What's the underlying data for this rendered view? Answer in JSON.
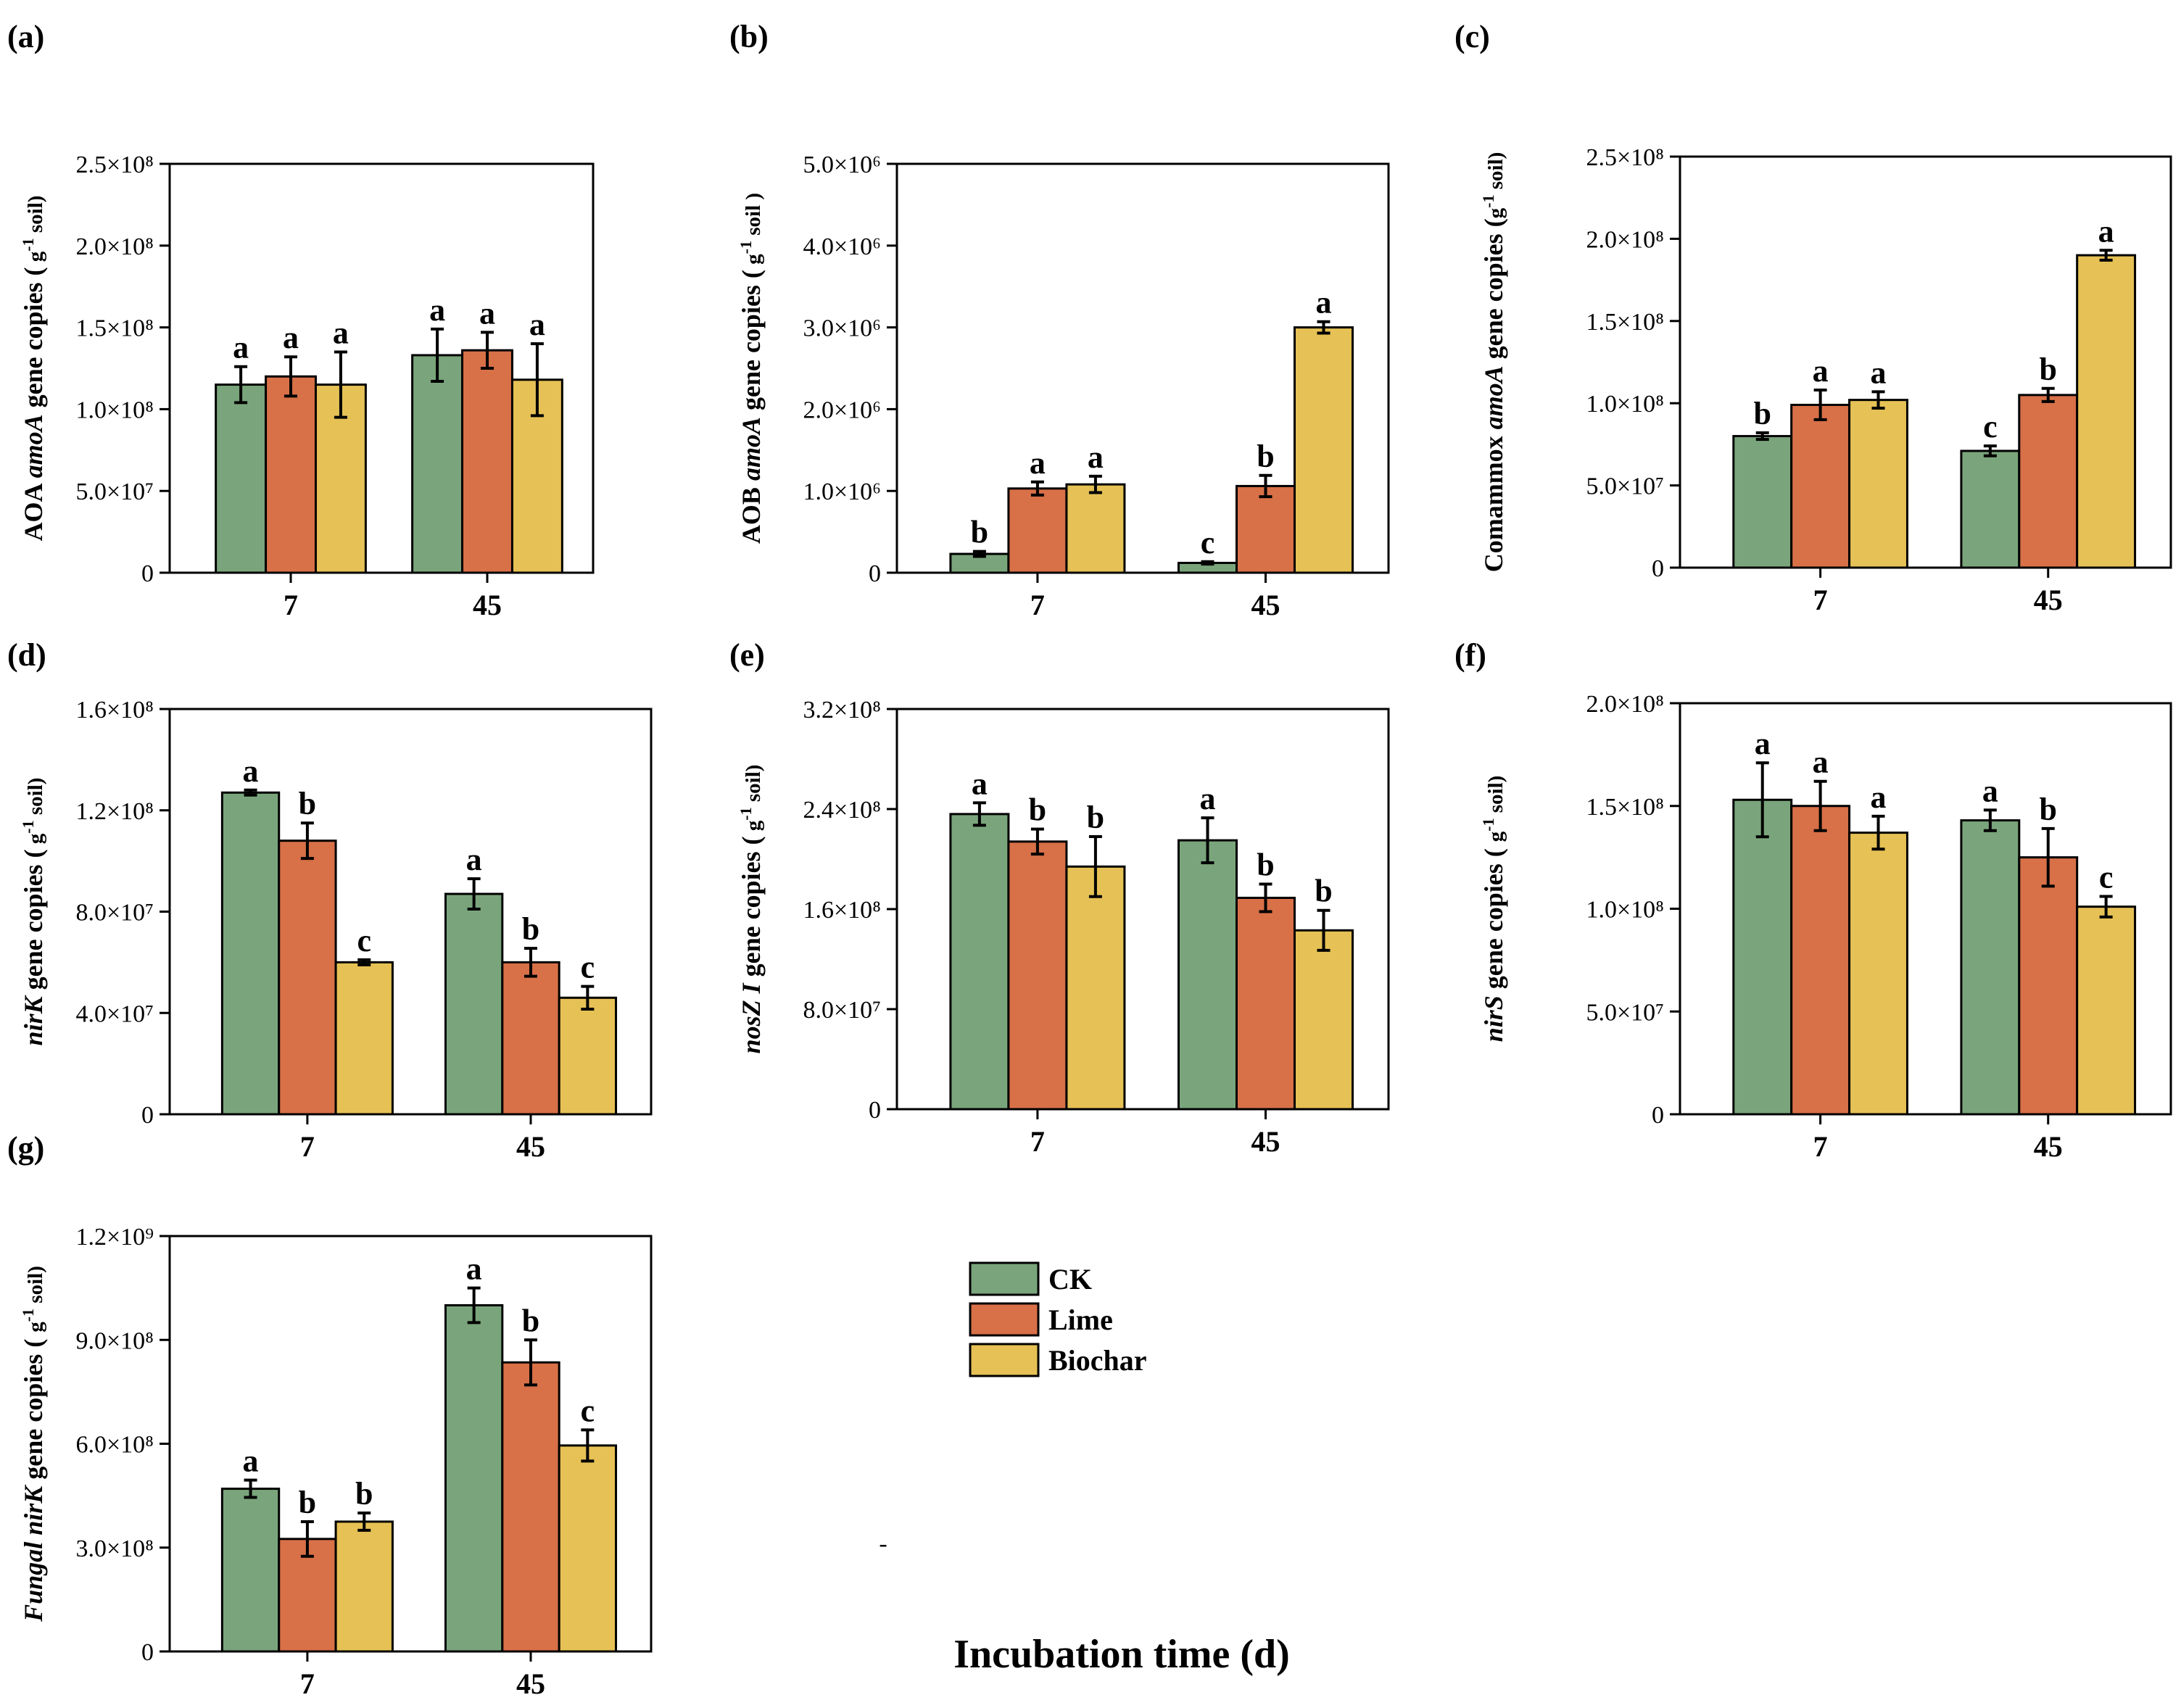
{
  "chart_data": {
    "type": "bar",
    "x_title": "Incubation time (d)",
    "categories": [
      "7",
      "45"
    ],
    "legend": {
      "position": "center",
      "entries": [
        {
          "name": "CK",
          "color": "#7aa57c"
        },
        {
          "name": "Lime",
          "color": "#d87048"
        },
        {
          "name": "Biochar",
          "color": "#e6c155"
        }
      ]
    },
    "stray_mark": "-",
    "panels": [
      {
        "label": "(a)",
        "ylabel": [
          {
            "t": "AOA "
          },
          {
            "t": "amoA",
            "i": true
          },
          {
            "t": " gene  copies ("
          },
          {
            "t": " g",
            "s": 0.8
          },
          {
            "t": "-1",
            "sup": true
          },
          {
            "t": " soil)",
            "s": 0.8
          }
        ],
        "ylim": [
          0,
          250000000
        ],
        "ticks": [
          {
            "v": 0,
            "text": "0"
          },
          {
            "v": 50000000,
            "text": "5.0×10⁷"
          },
          {
            "v": 100000000,
            "text": "1.0×10⁸"
          },
          {
            "v": 150000000,
            "text": "1.5×10⁸"
          },
          {
            "v": 200000000,
            "text": "2.0×10⁸"
          },
          {
            "v": 250000000,
            "text": "2.5×10⁸"
          }
        ],
        "series": [
          {
            "name": "CK",
            "values": [
              115000000,
              133000000
            ],
            "errors": [
              11000000,
              16000000
            ],
            "letters": [
              "a",
              "a"
            ]
          },
          {
            "name": "Lime",
            "values": [
              120000000,
              136000000
            ],
            "errors": [
              12000000,
              11000000
            ],
            "letters": [
              "a",
              "a"
            ]
          },
          {
            "name": "Biochar",
            "values": [
              115000000,
              118000000
            ],
            "errors": [
              20000000,
              22000000
            ],
            "letters": [
              "a",
              "a"
            ]
          }
        ]
      },
      {
        "label": "(b)",
        "ylabel": [
          {
            "t": "AOB "
          },
          {
            "t": "amoA",
            "i": true
          },
          {
            "t": " gene  copies ("
          },
          {
            "t": " g",
            "s": 0.8
          },
          {
            "t": "-1",
            "sup": true
          },
          {
            "t": " soil )",
            "s": 0.8
          }
        ],
        "ylim": [
          0,
          5000000
        ],
        "ticks": [
          {
            "v": 0,
            "text": "0"
          },
          {
            "v": 1000000,
            "text": "1.0×10⁶"
          },
          {
            "v": 2000000,
            "text": "2.0×10⁶"
          },
          {
            "v": 3000000,
            "text": "3.0×10⁶"
          },
          {
            "v": 4000000,
            "text": "4.0×10⁶"
          },
          {
            "v": 5000000,
            "text": "5.0×10⁶"
          }
        ],
        "series": [
          {
            "name": "CK",
            "values": [
              230000,
              120000
            ],
            "errors": [
              30000,
              15000
            ],
            "letters": [
              "b",
              "c"
            ]
          },
          {
            "name": "Lime",
            "values": [
              1030000,
              1060000
            ],
            "errors": [
              80000,
              130000
            ],
            "letters": [
              "a",
              "b"
            ]
          },
          {
            "name": "Biochar",
            "values": [
              1080000,
              3000000
            ],
            "errors": [
              100000,
              70000
            ],
            "letters": [
              "a",
              "a"
            ]
          }
        ]
      },
      {
        "label": "(c)",
        "ylabel": [
          {
            "t": "Comammox "
          },
          {
            "t": "amoA",
            "i": true
          },
          {
            "t": " gene copies ("
          },
          {
            "t": "g",
            "s": 0.8
          },
          {
            "t": "-1",
            "sup": true
          },
          {
            "t": " soil)",
            "s": 0.8
          }
        ],
        "ylim": [
          0,
          250000000
        ],
        "ticks": [
          {
            "v": 0,
            "text": "0"
          },
          {
            "v": 50000000,
            "text": "5.0×10⁷"
          },
          {
            "v": 100000000,
            "text": "1.0×10⁸"
          },
          {
            "v": 150000000,
            "text": "1.5×10⁸"
          },
          {
            "v": 200000000,
            "text": "2.0×10⁸"
          },
          {
            "v": 250000000,
            "text": "2.5×10⁸"
          }
        ],
        "series": [
          {
            "name": "CK",
            "values": [
              80000000,
              71000000
            ],
            "errors": [
              2000000,
              3000000
            ],
            "letters": [
              "b",
              "c"
            ]
          },
          {
            "name": "Lime",
            "values": [
              99000000,
              105000000
            ],
            "errors": [
              9000000,
              4000000
            ],
            "letters": [
              "a",
              "b"
            ]
          },
          {
            "name": "Biochar",
            "values": [
              102000000,
              190000000
            ],
            "errors": [
              5000000,
              3000000
            ],
            "letters": [
              "a",
              "a"
            ]
          }
        ]
      },
      {
        "label": "(d)",
        "ylabel": [
          {
            "t": "nirK",
            "i": true
          },
          {
            "t": " gene copies ("
          },
          {
            "t": " g",
            "s": 0.8
          },
          {
            "t": "-1",
            "sup": true
          },
          {
            "t": "  soil)",
            "s": 0.8
          }
        ],
        "ylim": [
          0,
          160000000
        ],
        "ticks": [
          {
            "v": 0,
            "text": "0"
          },
          {
            "v": 40000000,
            "text": "4.0×10⁷"
          },
          {
            "v": 80000000,
            "text": "8.0×10⁷"
          },
          {
            "v": 120000000,
            "text": "1.2×10⁸"
          },
          {
            "v": 160000000,
            "text": "1.6×10⁸"
          }
        ],
        "series": [
          {
            "name": "CK",
            "values": [
              127000000,
              87000000
            ],
            "errors": [
              1000000,
              6000000
            ],
            "letters": [
              "a",
              "a"
            ]
          },
          {
            "name": "Lime",
            "values": [
              108000000,
              60000000
            ],
            "errors": [
              7000000,
              5500000
            ],
            "letters": [
              "b",
              "b"
            ]
          },
          {
            "name": "Biochar",
            "values": [
              60000000,
              46000000
            ],
            "errors": [
              1000000,
              4500000
            ],
            "letters": [
              "c",
              "c"
            ]
          }
        ]
      },
      {
        "label": "(e)",
        "ylabel": [
          {
            "t": "nosZ I",
            "i": true
          },
          {
            "t": " gene copies ("
          },
          {
            "t": " g",
            "s": 0.8
          },
          {
            "t": "-1",
            "sup": true
          },
          {
            "t": " soil)",
            "s": 0.8
          }
        ],
        "ylim": [
          0,
          320000000
        ],
        "ticks": [
          {
            "v": 0,
            "text": "0"
          },
          {
            "v": 80000000,
            "text": "8.0×10⁷"
          },
          {
            "v": 160000000,
            "text": "1.6×10⁸"
          },
          {
            "v": 240000000,
            "text": "2.4×10⁸"
          },
          {
            "v": 320000000,
            "text": "3.2×10⁸"
          }
        ],
        "series": [
          {
            "name": "CK",
            "values": [
              236000000,
              215000000
            ],
            "errors": [
              9000000,
              18000000
            ],
            "letters": [
              "a",
              "a"
            ]
          },
          {
            "name": "Lime",
            "values": [
              214000000,
              169000000
            ],
            "errors": [
              10000000,
              11000000
            ],
            "letters": [
              "b",
              "b"
            ]
          },
          {
            "name": "Biochar",
            "values": [
              194000000,
              143000000
            ],
            "errors": [
              24000000,
              16000000
            ],
            "letters": [
              "b",
              "b"
            ]
          }
        ]
      },
      {
        "label": "(f)",
        "ylabel": [
          {
            "t": "nirS",
            "i": true
          },
          {
            "t": " gene copies ( "
          },
          {
            "t": "g",
            "s": 0.8
          },
          {
            "t": "-1",
            "sup": true
          },
          {
            "t": " soil)",
            "s": 0.8
          }
        ],
        "ylim": [
          0,
          200000000
        ],
        "ticks": [
          {
            "v": 0,
            "text": "0"
          },
          {
            "v": 50000000,
            "text": "5.0×10⁷"
          },
          {
            "v": 100000000,
            "text": "1.0×10⁸"
          },
          {
            "v": 150000000,
            "text": "1.5×10⁸"
          },
          {
            "v": 200000000,
            "text": "2.0×10⁸"
          }
        ],
        "series": [
          {
            "name": "CK",
            "values": [
              153000000,
              143000000
            ],
            "errors": [
              18000000,
              5000000
            ],
            "letters": [
              "a",
              "a"
            ]
          },
          {
            "name": "Lime",
            "values": [
              150000000,
              125000000
            ],
            "errors": [
              12000000,
              14000000
            ],
            "letters": [
              "a",
              "b"
            ]
          },
          {
            "name": "Biochar",
            "values": [
              137000000,
              101000000
            ],
            "errors": [
              8000000,
              5000000
            ],
            "letters": [
              "a",
              "c"
            ]
          }
        ]
      },
      {
        "label": "(g)",
        "ylabel": [
          {
            "t": "Fungal nirK",
            "i": true
          },
          {
            "t": " gene copies ( "
          },
          {
            "t": "g",
            "s": 0.8
          },
          {
            "t": "-1",
            "sup": true
          },
          {
            "t": " soil)",
            "s": 0.8
          }
        ],
        "ylim": [
          0,
          1200000000
        ],
        "ticks": [
          {
            "v": 0,
            "text": "0"
          },
          {
            "v": 300000000,
            "text": "3.0×10⁸"
          },
          {
            "v": 600000000,
            "text": "6.0×10⁸"
          },
          {
            "v": 900000000,
            "text": "9.0×10⁸"
          },
          {
            "v": 1200000000,
            "text": "1.2×10⁹"
          }
        ],
        "series": [
          {
            "name": "CK",
            "values": [
              470000000,
              1000000000
            ],
            "errors": [
              25000000,
              50000000
            ],
            "letters": [
              "a",
              "a"
            ]
          },
          {
            "name": "Lime",
            "values": [
              325000000,
              835000000
            ],
            "errors": [
              50000000,
              65000000
            ],
            "letters": [
              "b",
              "b"
            ]
          },
          {
            "name": "Biochar",
            "values": [
              375000000,
              595000000
            ],
            "errors": [
              25000000,
              45000000
            ],
            "letters": [
              "b",
              "c"
            ]
          }
        ]
      }
    ]
  }
}
